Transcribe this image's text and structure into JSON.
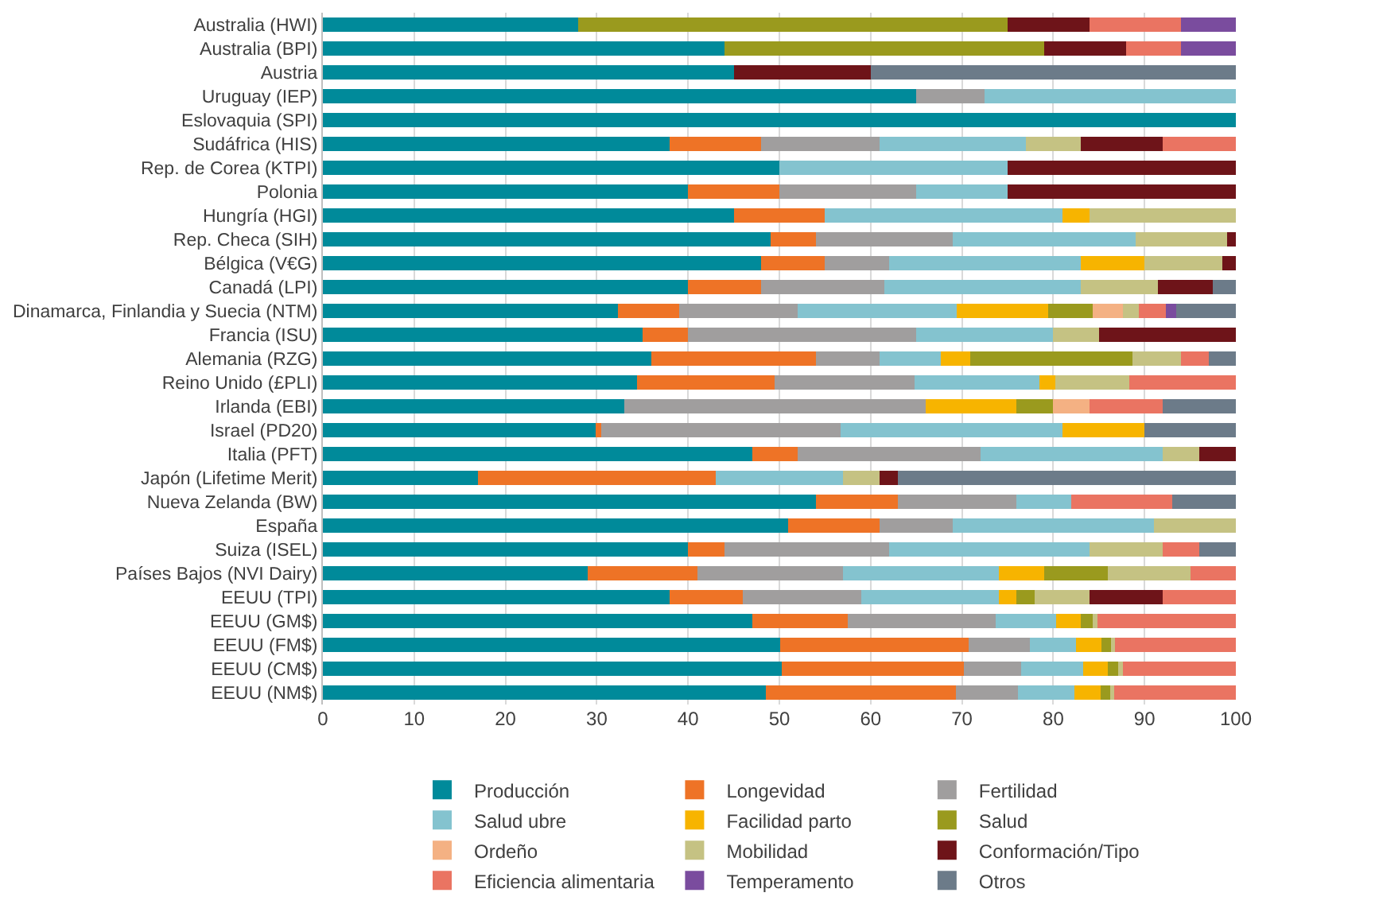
{
  "chart_data": {
    "type": "bar",
    "orientation": "horizontal",
    "stacked": true,
    "grid": "x",
    "legend": "bottom",
    "categories": [
      "Australia (HWI)",
      "Australia (BPI)",
      "Austria",
      "Uruguay (IEP)",
      "Eslovaquia (SPI)",
      "Sudáfrica (HIS)",
      "Rep. de Corea (KTPI)",
      "Polonia",
      "Hungría (HGI)",
      "Rep. Checa (SIH)",
      "Bélgica (V€G)",
      "Canadá (LPI)",
      "Dinamarca, Finlandia y Suecia (NTM)",
      "Francia (ISU)",
      "Alemania (RZG)",
      "Reino Unido (£PLI)",
      "Irlanda (EBI)",
      "Israel (PD20)",
      "Italia (PFT)",
      "Japón (Lifetime Merit)",
      "Nueva Zelanda (BW)",
      "España",
      "Suiza (ISEL)",
      "Países Bajos (NVI Dairy)",
      "EEUU (TPI)",
      "EEUU (GM$)",
      "EEUU (FM$)",
      "EEUU (CM$)",
      "EEUU (NM$)"
    ],
    "xlim": [
      0,
      100
    ],
    "xticks": [
      0,
      10,
      20,
      30,
      40,
      50,
      60,
      70,
      80,
      90,
      100
    ],
    "series": [
      {
        "name": "Producción",
        "color": "#008a9a",
        "values": [
          28,
          44,
          45,
          65,
          100,
          38,
          50,
          40,
          45,
          49,
          48,
          40,
          32.3,
          35,
          36,
          34.4,
          33,
          29.9,
          47,
          17,
          54,
          51,
          40,
          29,
          38,
          47,
          50.1,
          50.3,
          48.5
        ]
      },
      {
        "name": "Longevidad",
        "color": "#ee7326",
        "values": [
          null,
          null,
          null,
          null,
          null,
          10,
          null,
          10,
          10,
          5,
          7,
          8,
          6.7,
          5,
          18,
          15.1,
          null,
          0.6,
          5,
          26,
          9,
          10,
          4,
          12,
          8,
          10.5,
          20.6,
          19.9,
          20.8
        ]
      },
      {
        "name": "Fertilidad",
        "color": "#a09e9e",
        "values": [
          null,
          null,
          null,
          7.5,
          null,
          13,
          null,
          15,
          null,
          15,
          7,
          13.5,
          13,
          25,
          7,
          15.3,
          33,
          26.2,
          20,
          null,
          13,
          8,
          18,
          16,
          13,
          16.2,
          6.7,
          6.3,
          6.8
        ]
      },
      {
        "name": "Salud ubre",
        "color": "#84c3cf",
        "values": [
          null,
          null,
          null,
          27.5,
          null,
          16,
          25,
          10,
          26,
          20,
          21,
          21.5,
          17.4,
          15,
          6.7,
          13.7,
          null,
          24.3,
          20,
          14,
          6,
          22,
          22,
          17,
          15,
          6.6,
          5.1,
          6.8,
          6.2
        ]
      },
      {
        "name": "Facilidad parto",
        "color": "#f7b400",
        "values": [
          null,
          null,
          null,
          null,
          null,
          null,
          null,
          null,
          3,
          null,
          7,
          null,
          10,
          null,
          3.2,
          1.7,
          10,
          9,
          null,
          null,
          null,
          null,
          null,
          5,
          2,
          2.7,
          2.8,
          2.7,
          2.9
        ]
      },
      {
        "name": "Salud",
        "color": "#9a9a1e",
        "values": [
          47,
          35,
          null,
          null,
          null,
          null,
          null,
          null,
          null,
          null,
          null,
          null,
          4.9,
          null,
          17.8,
          null,
          4,
          null,
          null,
          null,
          null,
          null,
          null,
          7,
          2,
          1.3,
          1,
          1.1,
          1
        ]
      },
      {
        "name": "Ordeño",
        "color": "#f4b183",
        "values": [
          null,
          null,
          null,
          null,
          null,
          null,
          null,
          null,
          null,
          null,
          null,
          null,
          3.3,
          null,
          null,
          null,
          4,
          null,
          null,
          null,
          null,
          null,
          null,
          null,
          null,
          null,
          null,
          null,
          null
        ]
      },
      {
        "name": "Mobilidad",
        "color": "#c5c283",
        "values": [
          null,
          null,
          null,
          null,
          null,
          6,
          null,
          null,
          16,
          10,
          8.5,
          8.5,
          1.8,
          5,
          5.3,
          8.1,
          null,
          null,
          4,
          4,
          null,
          9,
          8,
          9,
          6,
          0.5,
          0.5,
          0.5,
          0.5
        ]
      },
      {
        "name": "Conformación/Tipo",
        "color": "#6e1419",
        "values": [
          9,
          9,
          15,
          null,
          null,
          9,
          25,
          25,
          null,
          1,
          1.5,
          6,
          null,
          15,
          null,
          null,
          null,
          null,
          4,
          2,
          null,
          null,
          null,
          null,
          8,
          null,
          null,
          null,
          null
        ]
      },
      {
        "name": "Eficiencia alimentaria",
        "color": "#ea7462",
        "values": [
          10,
          6,
          null,
          null,
          null,
          8,
          null,
          null,
          null,
          null,
          null,
          null,
          2.9,
          null,
          3,
          11.7,
          8,
          null,
          null,
          null,
          11,
          null,
          4,
          5,
          8,
          15.2,
          13.2,
          12.4,
          13.3
        ]
      },
      {
        "name": "Temperamento",
        "color": "#7a4c9e",
        "values": [
          6,
          6,
          null,
          null,
          null,
          null,
          null,
          null,
          null,
          null,
          null,
          null,
          1.2,
          null,
          null,
          null,
          null,
          null,
          null,
          null,
          null,
          null,
          null,
          null,
          null,
          null,
          null,
          null,
          null
        ]
      },
      {
        "name": "Otros",
        "color": "#6c7b89",
        "values": [
          null,
          null,
          40,
          null,
          null,
          null,
          null,
          null,
          null,
          null,
          null,
          2.5,
          6.5,
          null,
          3,
          null,
          8,
          10,
          null,
          37,
          7,
          null,
          4,
          null,
          null,
          null,
          null,
          null,
          null
        ]
      }
    ]
  }
}
